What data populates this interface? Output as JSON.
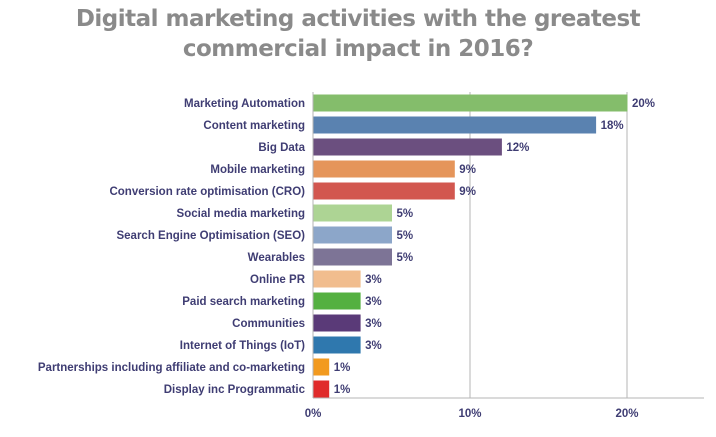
{
  "chart_data": {
    "type": "bar",
    "orientation": "horizontal",
    "title_lines": [
      "Digital marketing activities with the greatest",
      "commercial impact in 2016?"
    ],
    "categories": [
      "Marketing Automation",
      "Content marketing",
      "Big Data",
      "Mobile marketing",
      "Conversion rate optimisation (CRO)",
      "Social media marketing",
      "Search Engine Optimisation (SEO)",
      "Wearables",
      "Online PR",
      "Paid search marketing",
      "Communities",
      "Internet of Things (IoT)",
      "Partnerships including affiliate and co-marketing",
      "Display inc Programmatic"
    ],
    "values": [
      20,
      18,
      12,
      9,
      9,
      5,
      5,
      5,
      3,
      3,
      3,
      3,
      1,
      1
    ],
    "value_labels": [
      "20%",
      "18%",
      "12%",
      "9%",
      "9%",
      "5%",
      "5%",
      "5%",
      "3%",
      "3%",
      "3%",
      "3%",
      "1%",
      "1%"
    ],
    "colors": [
      "#84bd6b",
      "#5a82b0",
      "#6b4f7f",
      "#e5955a",
      "#d2574f",
      "#add494",
      "#8ca6c9",
      "#7d7496",
      "#f1bd8e",
      "#54b040",
      "#5a3a78",
      "#2f78ae",
      "#f29a1f",
      "#e02b2b"
    ],
    "xlim": [
      0,
      25
    ],
    "xticks": [
      0,
      10,
      20
    ],
    "xtick_labels": [
      "0%",
      "10%",
      "20%"
    ],
    "grid": true
  }
}
